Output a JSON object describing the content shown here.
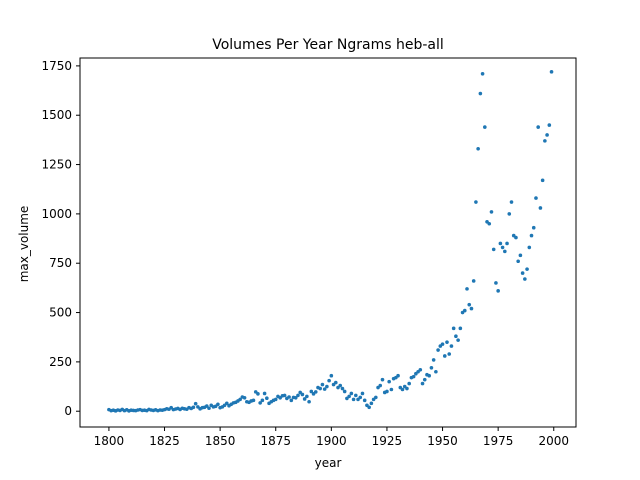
{
  "chart_data": {
    "type": "scatter",
    "title": "Volumes Per Year Ngrams heb-all",
    "xlabel": "year",
    "ylabel": "max_volume",
    "xlim": [
      1787,
      2010
    ],
    "ylim": [
      -80,
      1790
    ],
    "xticks": [
      1800,
      1825,
      1850,
      1875,
      1900,
      1925,
      1950,
      1975,
      2000
    ],
    "yticks": [
      0,
      250,
      500,
      750,
      1000,
      1250,
      1500,
      1750
    ],
    "grid": false,
    "legend": "none",
    "marker_color": "#1f77b4",
    "series": [
      {
        "x": [
          1800,
          1801,
          1802,
          1803,
          1804,
          1805,
          1806,
          1807,
          1808,
          1809,
          1810,
          1811,
          1812,
          1813,
          1814,
          1815,
          1816,
          1817,
          1818,
          1819,
          1820,
          1821,
          1822,
          1823,
          1824,
          1825,
          1826,
          1827,
          1828,
          1829,
          1830,
          1831,
          1832,
          1833,
          1834,
          1835,
          1836,
          1837,
          1838,
          1839,
          1840,
          1841,
          1842,
          1843,
          1844,
          1845,
          1846,
          1847,
          1848,
          1849,
          1850,
          1851,
          1852,
          1853,
          1854,
          1855,
          1856,
          1857,
          1858,
          1859,
          1860,
          1861,
          1862,
          1863,
          1864,
          1865,
          1866,
          1867,
          1868,
          1869,
          1870,
          1871,
          1872,
          1873,
          1874,
          1875,
          1876,
          1877,
          1878,
          1879,
          1880,
          1881,
          1882,
          1883,
          1884,
          1885,
          1886,
          1887,
          1888,
          1889,
          1890,
          1891,
          1892,
          1893,
          1894,
          1895,
          1896,
          1897,
          1898,
          1899,
          1900,
          1901,
          1902,
          1903,
          1904,
          1905,
          1906,
          1907,
          1908,
          1909,
          1910,
          1911,
          1912,
          1913,
          1914,
          1915,
          1916,
          1917,
          1918,
          1919,
          1920,
          1921,
          1922,
          1923,
          1924,
          1925,
          1926,
          1927,
          1928,
          1929,
          1930,
          1931,
          1932,
          1933,
          1934,
          1935,
          1936,
          1937,
          1938,
          1939,
          1940,
          1941,
          1942,
          1943,
          1944,
          1945,
          1946,
          1947,
          1948,
          1949,
          1950,
          1951,
          1952,
          1953,
          1954,
          1955,
          1956,
          1957,
          1958,
          1959,
          1960,
          1961,
          1962,
          1963,
          1964,
          1965,
          1966,
          1967,
          1968,
          1969,
          1970,
          1971,
          1972,
          1973,
          1974,
          1975,
          1976,
          1977,
          1978,
          1979,
          1980,
          1981,
          1982,
          1983,
          1984,
          1985,
          1986,
          1987,
          1988,
          1989,
          1990,
          1991,
          1992,
          1993,
          1994,
          1995,
          1996,
          1997,
          1998,
          1999
        ],
        "values": [
          8,
          3,
          5,
          2,
          6,
          4,
          9,
          3,
          7,
          2,
          5,
          4,
          3,
          6,
          8,
          4,
          5,
          3,
          9,
          6,
          4,
          7,
          3,
          6,
          5,
          8,
          12,
          10,
          18,
          8,
          11,
          14,
          9,
          15,
          12,
          10,
          18,
          14,
          20,
          38,
          22,
          12,
          18,
          20,
          26,
          15,
          30,
          22,
          25,
          35,
          18,
          22,
          30,
          40,
          28,
          35,
          42,
          45,
          52,
          60,
          72,
          68,
          48,
          45,
          52,
          55,
          98,
          88,
          42,
          55,
          90,
          66,
          40,
          48,
          55,
          60,
          75,
          68,
          78,
          80,
          65,
          72,
          55,
          70,
          68,
          80,
          95,
          85,
          62,
          75,
          48,
          100,
          88,
          98,
          120,
          115,
          135,
          112,
          125,
          155,
          180,
          135,
          145,
          120,
          130,
          115,
          100,
          65,
          75,
          90,
          60,
          80,
          60,
          70,
          90,
          55,
          30,
          20,
          40,
          60,
          70,
          120,
          130,
          160,
          95,
          100,
          150,
          110,
          165,
          170,
          180,
          120,
          110,
          125,
          115,
          140,
          170,
          175,
          190,
          200,
          210,
          140,
          160,
          185,
          180,
          220,
          260,
          200,
          310,
          330,
          340,
          280,
          350,
          290,
          330,
          420,
          380,
          360,
          420,
          500,
          510,
          620,
          540,
          520,
          660,
          1060,
          1330,
          1610,
          1710,
          1440,
          960,
          950,
          1010,
          820,
          650,
          610,
          850,
          830,
          810,
          850,
          1000,
          1060,
          890,
          880,
          760,
          790,
          700,
          670,
          720,
          830,
          890,
          930,
          1080,
          1440,
          1030,
          1170,
          1370,
          1400,
          1450,
          1720
        ]
      }
    ]
  }
}
